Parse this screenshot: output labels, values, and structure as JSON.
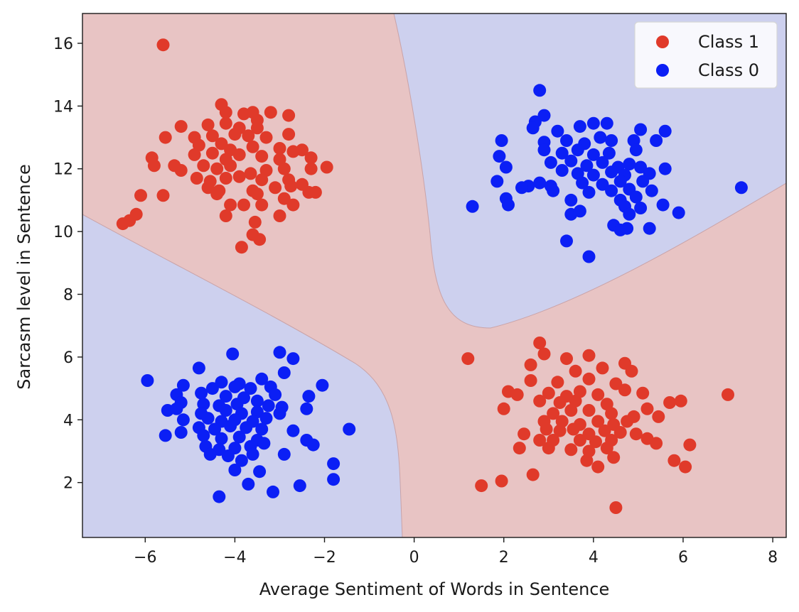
{
  "chart_data": {
    "type": "scatter",
    "xlabel": "Average Sentiment of Words in Sentence",
    "ylabel": "Sarcasm level in Sentence",
    "xlim": [
      -7.4,
      8.3
    ],
    "ylim": [
      0.25,
      16.95
    ],
    "x_ticks": [
      -6,
      -4,
      -2,
      0,
      2,
      4,
      6,
      8
    ],
    "x_tick_labels": [
      "−6",
      "−4",
      "−2",
      "0",
      "2",
      "4",
      "6",
      "8"
    ],
    "y_ticks": [
      2,
      4,
      6,
      8,
      10,
      12,
      14,
      16
    ],
    "y_tick_labels": [
      "2",
      "4",
      "6",
      "8",
      "10",
      "12",
      "14",
      "16"
    ],
    "grid": false,
    "legend_position": "upper-right",
    "background_regions": [
      {
        "class": "Class 1",
        "color": "#e8c4c4"
      },
      {
        "class": "Class 0",
        "color": "#cdd0ee"
      }
    ],
    "series": [
      {
        "name": "Class 1",
        "color": "#e03a2a",
        "points": [
          [
            -5.6,
            15.95
          ],
          [
            -4.3,
            14.05
          ],
          [
            -4.2,
            13.8
          ],
          [
            -3.8,
            13.75
          ],
          [
            -3.6,
            13.8
          ],
          [
            -3.5,
            13.55
          ],
          [
            -3.2,
            13.8
          ],
          [
            -2.8,
            13.7
          ],
          [
            -5.2,
            13.35
          ],
          [
            -4.6,
            13.4
          ],
          [
            -4.2,
            13.45
          ],
          [
            -3.9,
            13.3
          ],
          [
            -3.5,
            13.3
          ],
          [
            -4.9,
            13.0
          ],
          [
            -4.5,
            13.05
          ],
          [
            -4.0,
            13.1
          ],
          [
            -3.7,
            13.05
          ],
          [
            -3.3,
            13.0
          ],
          [
            -2.8,
            13.1
          ],
          [
            -5.55,
            13.0
          ],
          [
            -4.8,
            12.75
          ],
          [
            -4.3,
            12.8
          ],
          [
            -4.1,
            12.6
          ],
          [
            -3.6,
            12.7
          ],
          [
            -3.0,
            12.65
          ],
          [
            -2.7,
            12.55
          ],
          [
            -2.5,
            12.6
          ],
          [
            -5.85,
            12.35
          ],
          [
            -4.9,
            12.45
          ],
          [
            -4.5,
            12.5
          ],
          [
            -4.2,
            12.3
          ],
          [
            -3.9,
            12.45
          ],
          [
            -3.4,
            12.4
          ],
          [
            -3.0,
            12.3
          ],
          [
            -2.3,
            12.35
          ],
          [
            -5.8,
            12.1
          ],
          [
            -5.35,
            12.1
          ],
          [
            -5.2,
            11.95
          ],
          [
            -4.7,
            12.1
          ],
          [
            -4.4,
            12.0
          ],
          [
            -4.1,
            12.1
          ],
          [
            -3.65,
            11.85
          ],
          [
            -3.3,
            11.95
          ],
          [
            -2.9,
            12.0
          ],
          [
            -2.3,
            12.0
          ],
          [
            -1.95,
            12.05
          ],
          [
            -4.85,
            11.7
          ],
          [
            -4.55,
            11.6
          ],
          [
            -4.2,
            11.7
          ],
          [
            -3.9,
            11.75
          ],
          [
            -3.4,
            11.65
          ],
          [
            -2.8,
            11.65
          ],
          [
            -2.5,
            11.5
          ],
          [
            -4.6,
            11.4
          ],
          [
            -4.35,
            11.3
          ],
          [
            -3.6,
            11.3
          ],
          [
            -3.1,
            11.4
          ],
          [
            -2.75,
            11.45
          ],
          [
            -2.35,
            11.25
          ],
          [
            -2.2,
            11.25
          ],
          [
            -6.1,
            11.15
          ],
          [
            -5.6,
            11.15
          ],
          [
            -4.4,
            11.2
          ],
          [
            -3.5,
            11.2
          ],
          [
            -2.9,
            11.05
          ],
          [
            -4.1,
            10.85
          ],
          [
            -3.8,
            10.85
          ],
          [
            -3.4,
            10.85
          ],
          [
            -2.7,
            10.85
          ],
          [
            -6.2,
            10.55
          ],
          [
            -4.2,
            10.5
          ],
          [
            -3.0,
            10.5
          ],
          [
            -6.5,
            10.25
          ],
          [
            -6.35,
            10.35
          ],
          [
            -3.55,
            10.3
          ],
          [
            -3.6,
            9.9
          ],
          [
            -3.45,
            9.75
          ],
          [
            -3.85,
            9.5
          ],
          [
            2.8,
            6.45
          ],
          [
            1.2,
            5.95
          ],
          [
            2.9,
            6.1
          ],
          [
            3.4,
            5.95
          ],
          [
            3.9,
            6.05
          ],
          [
            4.7,
            5.8
          ],
          [
            2.6,
            5.75
          ],
          [
            3.6,
            5.55
          ],
          [
            4.2,
            5.65
          ],
          [
            4.85,
            5.55
          ],
          [
            2.6,
            5.25
          ],
          [
            3.2,
            5.2
          ],
          [
            3.9,
            5.3
          ],
          [
            4.5,
            5.15
          ],
          [
            2.1,
            4.9
          ],
          [
            2.3,
            4.8
          ],
          [
            3.0,
            4.85
          ],
          [
            3.4,
            4.75
          ],
          [
            3.7,
            4.9
          ],
          [
            4.1,
            4.8
          ],
          [
            4.7,
            4.95
          ],
          [
            5.1,
            4.85
          ],
          [
            2.0,
            4.35
          ],
          [
            2.8,
            4.6
          ],
          [
            3.25,
            4.55
          ],
          [
            3.6,
            4.6
          ],
          [
            4.3,
            4.5
          ],
          [
            5.7,
            4.55
          ],
          [
            5.95,
            4.6
          ],
          [
            7.0,
            4.8
          ],
          [
            3.1,
            4.2
          ],
          [
            3.5,
            4.3
          ],
          [
            3.9,
            4.3
          ],
          [
            4.4,
            4.2
          ],
          [
            4.9,
            4.1
          ],
          [
            5.2,
            4.35
          ],
          [
            5.45,
            4.1
          ],
          [
            2.9,
            3.95
          ],
          [
            3.3,
            3.95
          ],
          [
            3.7,
            3.85
          ],
          [
            4.1,
            3.95
          ],
          [
            4.45,
            3.85
          ],
          [
            4.75,
            3.95
          ],
          [
            2.45,
            3.55
          ],
          [
            2.95,
            3.7
          ],
          [
            3.25,
            3.65
          ],
          [
            3.55,
            3.7
          ],
          [
            3.9,
            3.55
          ],
          [
            4.25,
            3.65
          ],
          [
            4.6,
            3.6
          ],
          [
            4.95,
            3.55
          ],
          [
            2.8,
            3.35
          ],
          [
            3.1,
            3.35
          ],
          [
            3.7,
            3.35
          ],
          [
            4.05,
            3.3
          ],
          [
            4.4,
            3.35
          ],
          [
            5.2,
            3.4
          ],
          [
            5.4,
            3.25
          ],
          [
            2.35,
            3.1
          ],
          [
            3.0,
            3.1
          ],
          [
            3.5,
            3.05
          ],
          [
            3.9,
            3.0
          ],
          [
            4.3,
            3.1
          ],
          [
            6.15,
            3.2
          ],
          [
            4.45,
            2.8
          ],
          [
            3.85,
            2.7
          ],
          [
            4.1,
            2.5
          ],
          [
            5.8,
            2.7
          ],
          [
            6.05,
            2.5
          ],
          [
            2.65,
            2.25
          ],
          [
            1.95,
            2.05
          ],
          [
            1.5,
            1.9
          ],
          [
            4.5,
            1.2
          ]
        ]
      },
      {
        "name": "Class 0",
        "color": "#0b1ff5",
        "points": [
          [
            2.8,
            14.5
          ],
          [
            2.9,
            13.7
          ],
          [
            2.7,
            13.5
          ],
          [
            2.65,
            13.3
          ],
          [
            3.2,
            13.2
          ],
          [
            3.7,
            13.35
          ],
          [
            4.0,
            13.45
          ],
          [
            4.3,
            13.45
          ],
          [
            5.05,
            13.25
          ],
          [
            5.6,
            13.2
          ],
          [
            1.95,
            12.9
          ],
          [
            2.9,
            12.85
          ],
          [
            3.4,
            12.9
          ],
          [
            3.8,
            12.8
          ],
          [
            4.15,
            13.0
          ],
          [
            4.4,
            12.9
          ],
          [
            4.9,
            12.9
          ],
          [
            5.4,
            12.9
          ],
          [
            1.9,
            12.4
          ],
          [
            2.9,
            12.6
          ],
          [
            3.3,
            12.5
          ],
          [
            3.65,
            12.6
          ],
          [
            4.0,
            12.45
          ],
          [
            4.35,
            12.5
          ],
          [
            4.95,
            12.6
          ],
          [
            2.05,
            12.05
          ],
          [
            3.05,
            12.2
          ],
          [
            3.5,
            12.25
          ],
          [
            3.85,
            12.1
          ],
          [
            4.2,
            12.2
          ],
          [
            4.55,
            12.05
          ],
          [
            4.8,
            12.15
          ],
          [
            5.05,
            12.05
          ],
          [
            5.6,
            12.0
          ],
          [
            3.3,
            11.95
          ],
          [
            3.65,
            11.85
          ],
          [
            4.0,
            11.8
          ],
          [
            4.4,
            11.9
          ],
          [
            4.7,
            11.8
          ],
          [
            5.25,
            11.85
          ],
          [
            1.85,
            11.6
          ],
          [
            2.55,
            11.45
          ],
          [
            2.8,
            11.55
          ],
          [
            3.05,
            11.45
          ],
          [
            3.75,
            11.55
          ],
          [
            4.2,
            11.5
          ],
          [
            4.6,
            11.6
          ],
          [
            5.1,
            11.6
          ],
          [
            2.4,
            11.4
          ],
          [
            3.1,
            11.3
          ],
          [
            3.9,
            11.25
          ],
          [
            4.4,
            11.3
          ],
          [
            4.8,
            11.35
          ],
          [
            5.3,
            11.3
          ],
          [
            7.3,
            11.4
          ],
          [
            2.05,
            11.05
          ],
          [
            3.5,
            11.0
          ],
          [
            4.6,
            11.0
          ],
          [
            4.95,
            11.1
          ],
          [
            1.3,
            10.8
          ],
          [
            2.1,
            10.85
          ],
          [
            4.7,
            10.8
          ],
          [
            5.05,
            10.75
          ],
          [
            5.55,
            10.85
          ],
          [
            3.5,
            10.55
          ],
          [
            3.7,
            10.65
          ],
          [
            4.8,
            10.55
          ],
          [
            5.9,
            10.6
          ],
          [
            4.45,
            10.2
          ],
          [
            4.6,
            10.05
          ],
          [
            4.75,
            10.1
          ],
          [
            5.25,
            10.1
          ],
          [
            3.4,
            9.7
          ],
          [
            3.9,
            9.2
          ],
          [
            -4.05,
            6.1
          ],
          [
            -3.0,
            6.15
          ],
          [
            -2.7,
            5.95
          ],
          [
            -4.8,
            5.65
          ],
          [
            -3.4,
            5.3
          ],
          [
            -2.9,
            5.5
          ],
          [
            -4.3,
            5.2
          ],
          [
            -3.9,
            5.15
          ],
          [
            -5.95,
            5.25
          ],
          [
            -5.15,
            5.1
          ],
          [
            -4.5,
            5.0
          ],
          [
            -4.0,
            5.05
          ],
          [
            -3.65,
            5.0
          ],
          [
            -3.2,
            5.05
          ],
          [
            -2.05,
            5.1
          ],
          [
            -5.3,
            4.8
          ],
          [
            -4.75,
            4.85
          ],
          [
            -4.2,
            4.75
          ],
          [
            -3.8,
            4.7
          ],
          [
            -3.5,
            4.6
          ],
          [
            -3.1,
            4.8
          ],
          [
            -2.35,
            4.75
          ],
          [
            -5.2,
            4.55
          ],
          [
            -4.7,
            4.5
          ],
          [
            -4.35,
            4.45
          ],
          [
            -3.95,
            4.5
          ],
          [
            -3.25,
            4.45
          ],
          [
            -2.95,
            4.4
          ],
          [
            -5.5,
            4.3
          ],
          [
            -5.3,
            4.35
          ],
          [
            -4.75,
            4.2
          ],
          [
            -4.2,
            4.3
          ],
          [
            -3.85,
            4.2
          ],
          [
            -3.5,
            4.25
          ],
          [
            -3.0,
            4.2
          ],
          [
            -2.4,
            4.35
          ],
          [
            -5.15,
            4.0
          ],
          [
            -4.6,
            4.05
          ],
          [
            -4.3,
            3.95
          ],
          [
            -4.0,
            4.0
          ],
          [
            -3.6,
            3.95
          ],
          [
            -3.3,
            4.05
          ],
          [
            -4.8,
            3.75
          ],
          [
            -4.45,
            3.7
          ],
          [
            -4.1,
            3.8
          ],
          [
            -3.75,
            3.75
          ],
          [
            -3.4,
            3.7
          ],
          [
            -2.7,
            3.65
          ],
          [
            -1.45,
            3.7
          ],
          [
            -5.55,
            3.5
          ],
          [
            -5.2,
            3.6
          ],
          [
            -4.7,
            3.5
          ],
          [
            -4.3,
            3.4
          ],
          [
            -3.9,
            3.45
          ],
          [
            -3.5,
            3.35
          ],
          [
            -4.65,
            3.15
          ],
          [
            -4.35,
            3.05
          ],
          [
            -4.0,
            3.1
          ],
          [
            -3.65,
            3.15
          ],
          [
            -3.35,
            3.25
          ],
          [
            -2.4,
            3.35
          ],
          [
            -2.25,
            3.2
          ],
          [
            -4.55,
            2.9
          ],
          [
            -4.15,
            2.85
          ],
          [
            -3.6,
            2.9
          ],
          [
            -3.85,
            2.7
          ],
          [
            -2.9,
            2.9
          ],
          [
            -4.0,
            2.4
          ],
          [
            -3.45,
            2.35
          ],
          [
            -1.8,
            2.6
          ],
          [
            -1.8,
            2.1
          ],
          [
            -2.55,
            1.9
          ],
          [
            -3.7,
            1.95
          ],
          [
            -3.15,
            1.7
          ],
          [
            -4.35,
            1.55
          ]
        ]
      }
    ]
  }
}
